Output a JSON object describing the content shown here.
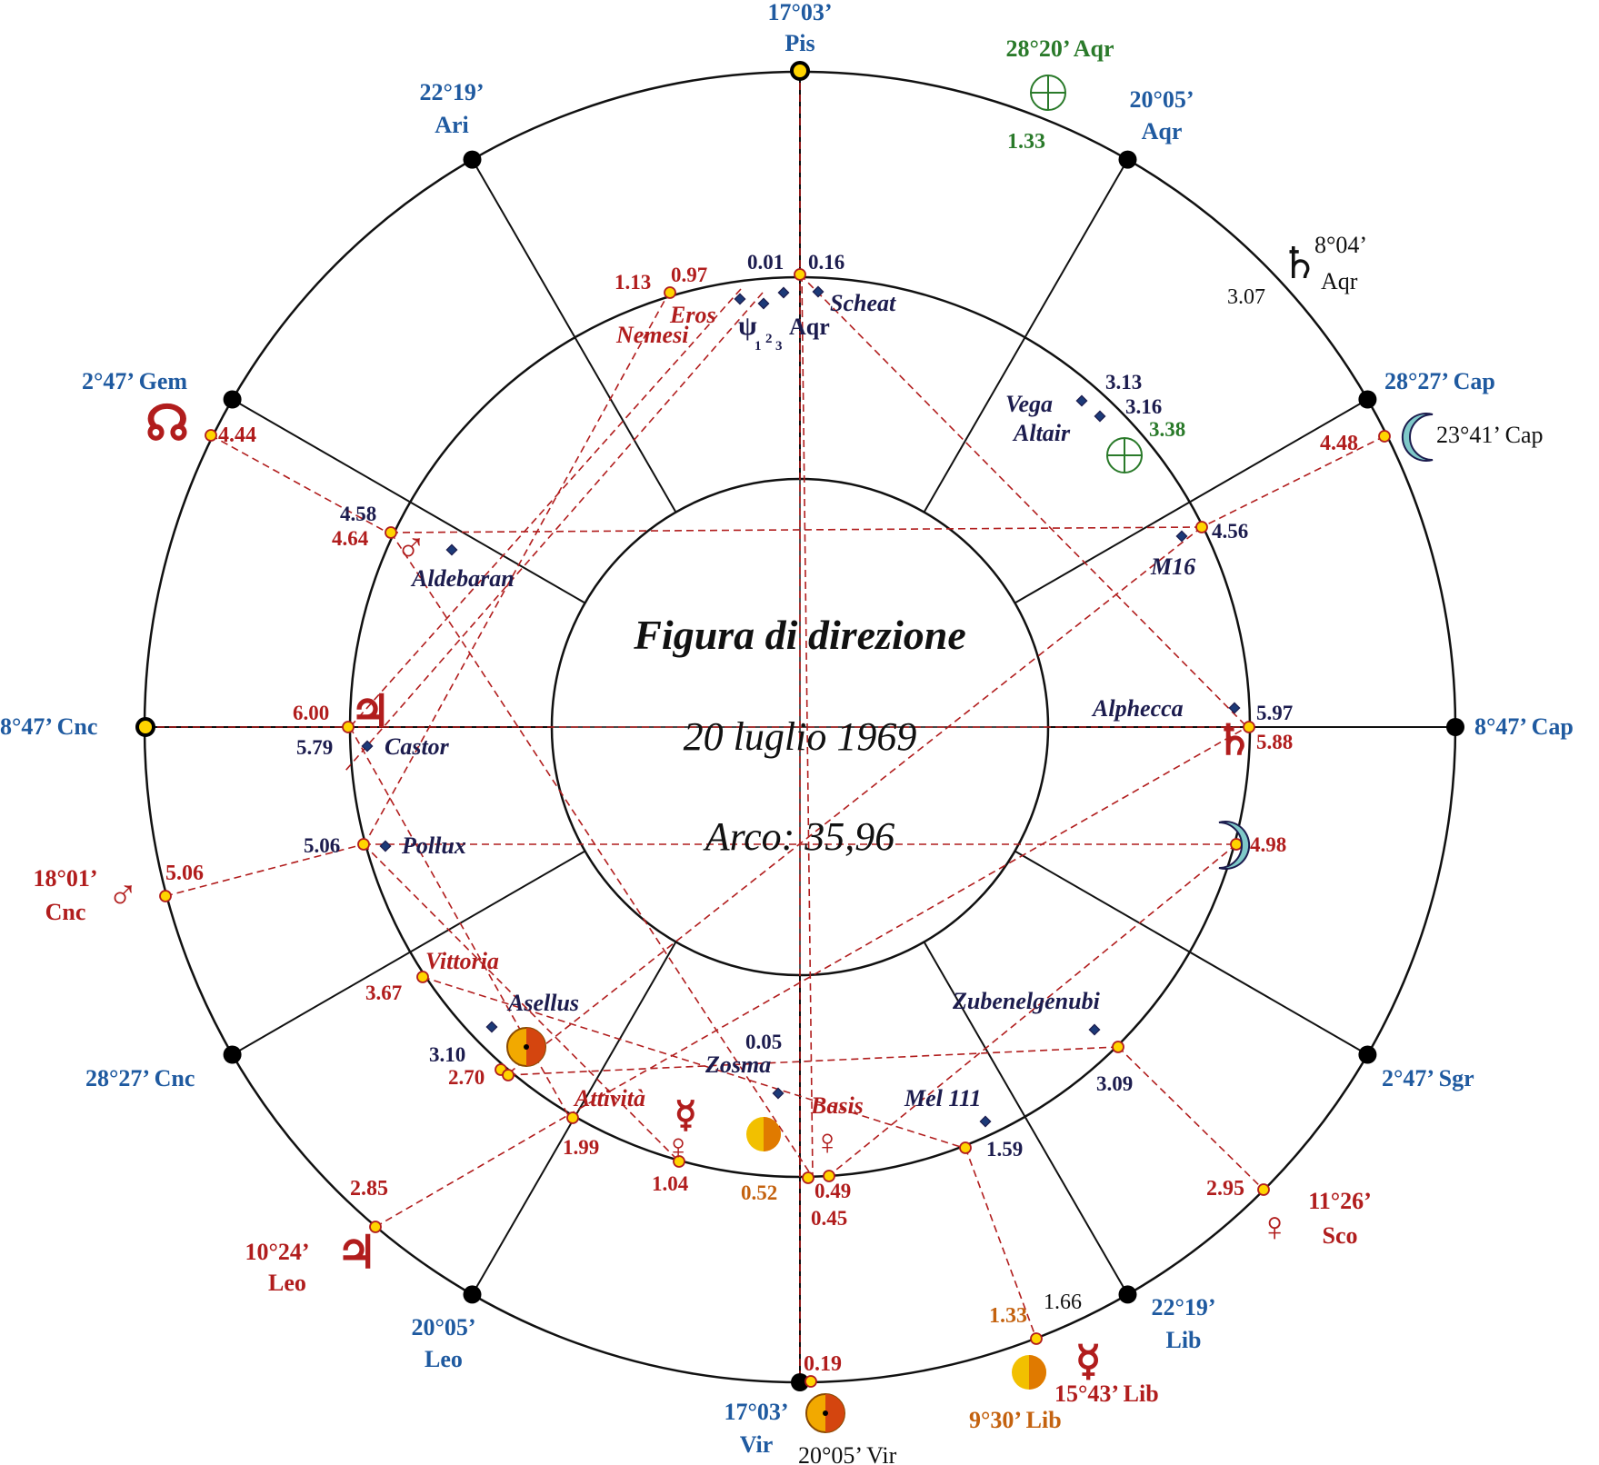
{
  "title": "Figura di direzione",
  "date": "20 luglio 1969",
  "arc": "Arco: 35,96",
  "colors": {
    "houseLabel": "#1f5aa0",
    "directed": "#b11d1d",
    "star": "#1c1c4e",
    "earthPart": "#2a7a2a",
    "sun": "#c4620f",
    "line": "#111111"
  },
  "houseCusps": [
    {
      "name": "cusp-10",
      "deg": "17°03’",
      "sign": "Pis"
    },
    {
      "name": "cusp-11",
      "deg": "20°05’",
      "sign": "Aqr"
    },
    {
      "name": "cusp-12",
      "deg": "28°27’ Cap",
      "sign": ""
    },
    {
      "name": "cusp-1",
      "deg": "8°47’ Cap",
      "sign": ""
    },
    {
      "name": "cusp-2",
      "deg": "2°47’ Sgr",
      "sign": ""
    },
    {
      "name": "cusp-3",
      "deg": "22°19’",
      "sign": "Lib"
    },
    {
      "name": "cusp-4",
      "deg": "17°03’",
      "sign": "Vir"
    },
    {
      "name": "cusp-5",
      "deg": "20°05’",
      "sign": "Leo"
    },
    {
      "name": "cusp-6",
      "deg": "28°27’ Cnc",
      "sign": ""
    },
    {
      "name": "cusp-7",
      "deg": "8°47’ Cnc",
      "sign": ""
    },
    {
      "name": "cusp-8",
      "deg": "2°47’ Gem",
      "sign": ""
    },
    {
      "name": "cusp-9",
      "deg": "22°19’",
      "sign": "Ari"
    }
  ],
  "radixPlanets": [
    {
      "name": "part-of-fortune",
      "glyph": "⊕",
      "pos": "28°20’ Aqr",
      "arc": "1.33"
    },
    {
      "name": "saturn",
      "glyph": "♄",
      "pos1": "8°04’",
      "pos2": "Aqr",
      "arc": "3.07"
    },
    {
      "name": "moon",
      "glyph": "☾",
      "pos": "23°41’ Cap",
      "arc": "4.48"
    },
    {
      "name": "mercury",
      "glyph": "☿",
      "pos": "15°43’ Lib",
      "arc": "1.66"
    },
    {
      "name": "sun-progressed",
      "pos": "9°30’ Lib",
      "arc": "1.33"
    },
    {
      "name": "sun",
      "pos": "20°05’ Vir",
      "arc": "0.19"
    },
    {
      "name": "venus",
      "glyph": "♀",
      "pos1": "11°26’",
      "pos2": "Sco",
      "arc": "2.95"
    },
    {
      "name": "jupiter",
      "glyph": "♃",
      "pos1": "10°24’",
      "pos2": "Leo",
      "arc": "2.85"
    },
    {
      "name": "mars",
      "glyph": "♂",
      "pos1": "18°01’",
      "pos2": "Cnc",
      "arc": "5.06"
    },
    {
      "name": "node",
      "glyph": "☊",
      "arc": "4.44"
    }
  ],
  "stars": [
    "Scheat",
    "Aqr",
    "Vega",
    "Altair",
    "M16",
    "Alphecca",
    "Aldebaran",
    "Castor",
    "Pollux",
    "Asellus",
    "Zosma",
    "Zubenelgenubi",
    "Mel 111"
  ],
  "asteroids": [
    "Eros",
    "Nemesi",
    "Vittoria",
    "Attività",
    "Basis"
  ],
  "arcValues": {
    "top": [
      "1.13",
      "0.97",
      "0.01",
      "0.16"
    ],
    "upperRight": [
      "3.13",
      "3.16",
      "3.38",
      "4.56"
    ],
    "right": [
      "5.97",
      "5.88",
      "4.98"
    ],
    "left": [
      "4.58",
      "4.64",
      "6.00",
      "5.79",
      "5.06"
    ],
    "lowerLeft": [
      "3.67",
      "3.10",
      "2.70",
      "1.99",
      "1.04"
    ],
    "bottom": [
      "0.05",
      "0.52",
      "0.49",
      "0.45",
      "1.59",
      "3.09"
    ]
  }
}
